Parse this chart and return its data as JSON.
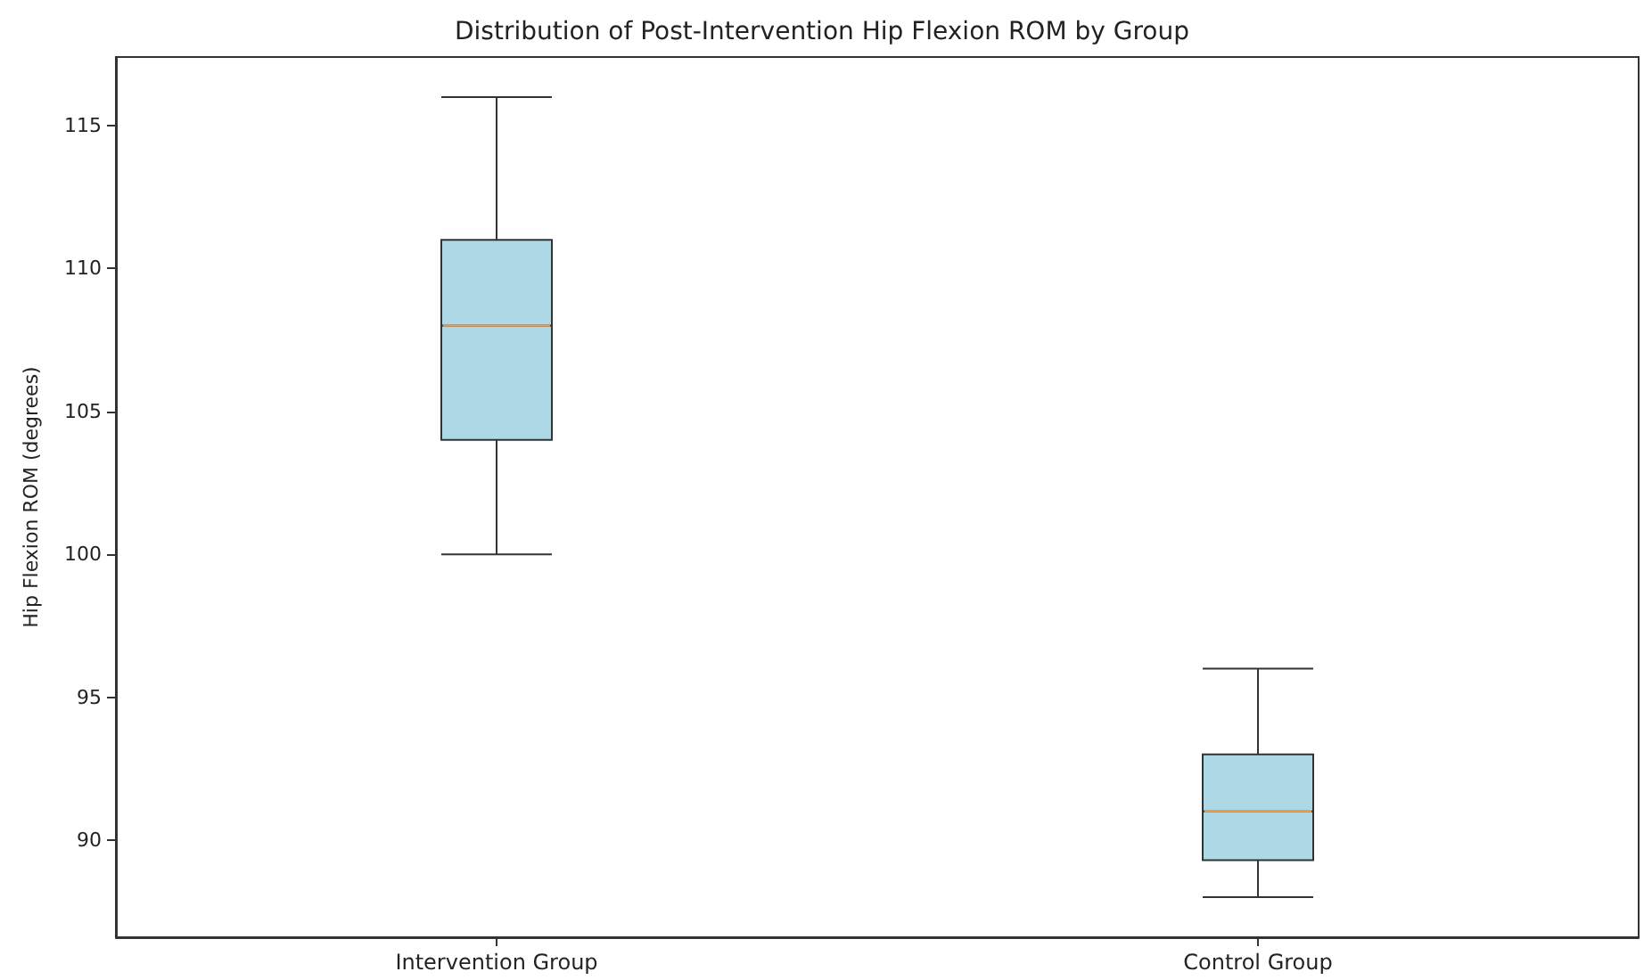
{
  "chart_data": {
    "type": "box",
    "title": "Distribution of Post-Intervention Hip Flexion ROM by Group",
    "ylabel": "Hip Flexion ROM (degrees)",
    "categories": [
      "Intervention Group",
      "Control Group"
    ],
    "series": [
      {
        "color": "#add8e6",
        "boxes": [
          {
            "low": 100,
            "q1": 104,
            "median": 108,
            "q3": 111,
            "high": 116
          },
          {
            "low": 88,
            "q1": 89.3,
            "median": 91,
            "q3": 93,
            "high": 96
          }
        ]
      }
    ],
    "ylim": [
      86.6,
      117.4
    ],
    "yticks": [
      90,
      95,
      100,
      105,
      110,
      115
    ],
    "grid": false
  }
}
